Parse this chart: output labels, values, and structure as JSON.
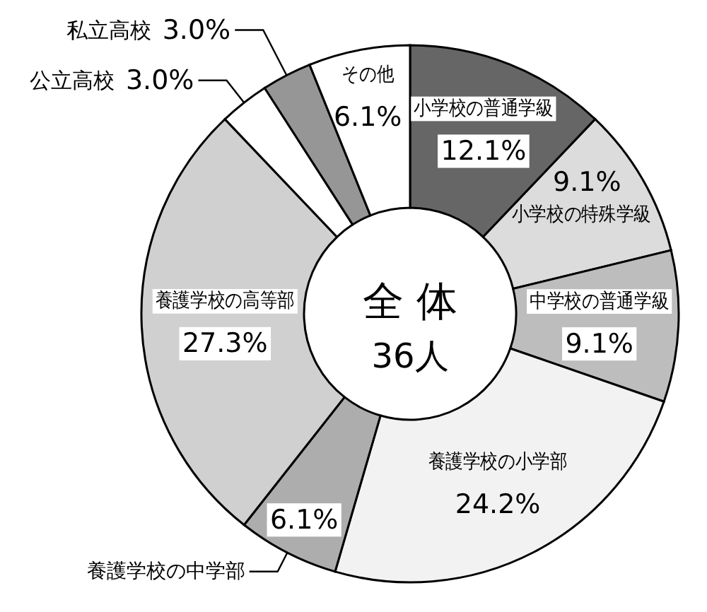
{
  "chart_data": {
    "type": "donut",
    "categories": [
      "小学校の普通学級",
      "小学校の特殊学級",
      "中学校の普通学級",
      "養護学校の小学部",
      "養護学校の中学部",
      "養護学校の高等部",
      "公立高校",
      "私立高校",
      "その他"
    ],
    "values": [
      12.1,
      9.1,
      9.1,
      24.2,
      6.1,
      27.3,
      3.0,
      3.0,
      6.1
    ],
    "colors": [
      "#666666",
      "#dcdcdc",
      "#bdbdbd",
      "#f2f2f2",
      "#adadad",
      "#d0d0d0",
      "#ffffff",
      "#969696",
      "#ffffff"
    ],
    "value_labels": [
      "12.1%",
      "9.1%",
      "9.1%",
      "24.2%",
      "6.1%",
      "27.3%",
      "3.0%",
      "3.0%",
      "6.1%"
    ],
    "annotations": [
      "全 体",
      "36人"
    ]
  }
}
